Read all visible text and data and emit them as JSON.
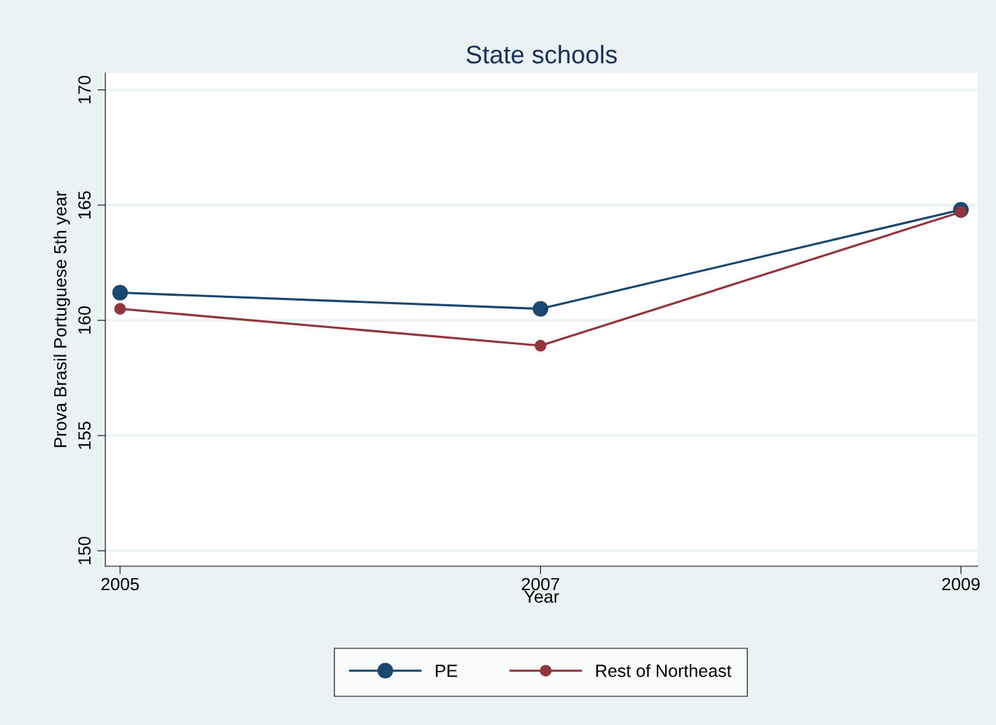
{
  "chart_data": {
    "type": "line",
    "title": "State schools",
    "xlabel": "Year",
    "ylabel": "Prova Brasil Portuguese 5th year",
    "x": [
      2005,
      2007,
      2009
    ],
    "series": [
      {
        "name": "PE",
        "color": "#1a476f",
        "values": [
          161.2,
          160.5,
          164.8
        ]
      },
      {
        "name": "Rest of Northeast",
        "color": "#90353b",
        "values": [
          160.5,
          158.9,
          164.7
        ]
      }
    ],
    "xlim": [
      2004.93,
      2009.08
    ],
    "xticks": [
      2005,
      2007,
      2009
    ],
    "ylim": [
      149.33,
      170.73
    ],
    "yticks": [
      150,
      155,
      160,
      165,
      170
    ],
    "grid": "y",
    "legend": "bottom",
    "marker": "circle",
    "line_style": "solid"
  }
}
